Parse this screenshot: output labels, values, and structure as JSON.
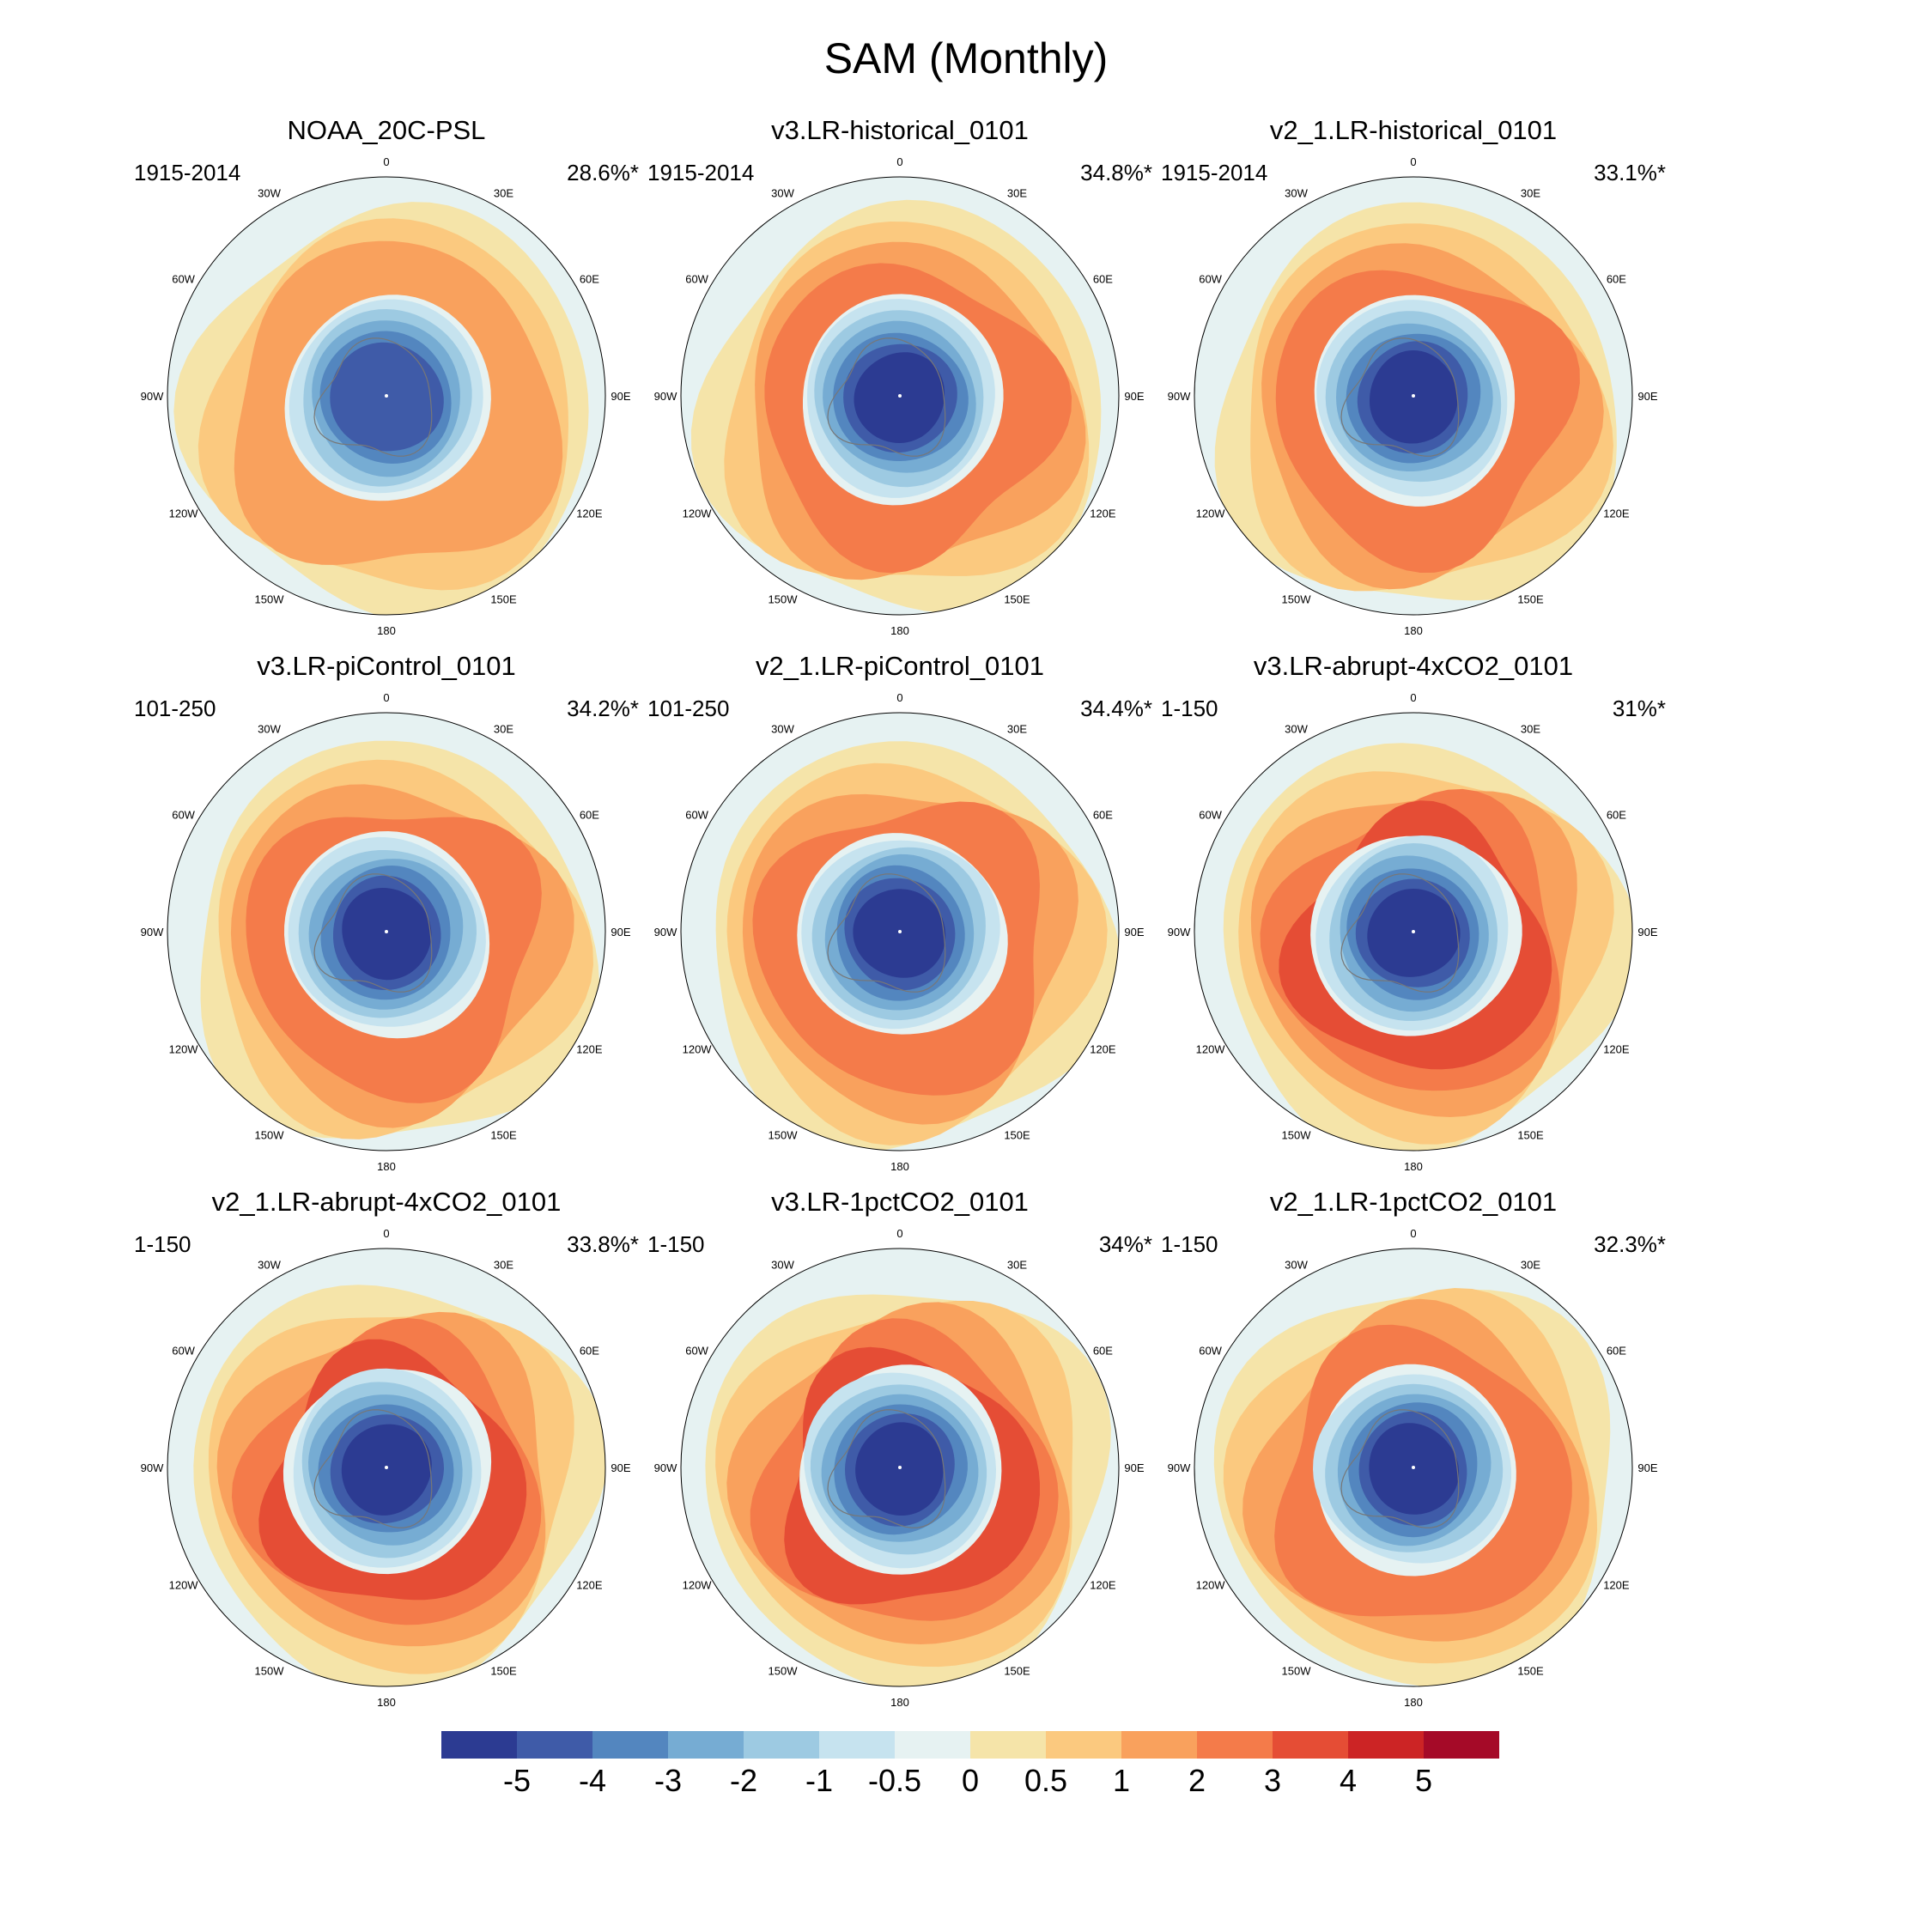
{
  "title": "SAM (Monthly)",
  "panels": [
    {
      "title": "NOAA_20C-PSL",
      "period": "1915-2014",
      "percent": "28.6%*",
      "min_level": -4,
      "max_level": 2
    },
    {
      "title": "v3.LR-historical_0101",
      "period": "1915-2014",
      "percent": "34.8%*",
      "min_level": -5,
      "max_level": 3
    },
    {
      "title": "v2_1.LR-historical_0101",
      "period": "1915-2014",
      "percent": "33.1%*",
      "min_level": -5,
      "max_level": 3
    },
    {
      "title": "v3.LR-piControl_0101",
      "period": "101-250",
      "percent": "34.2%*",
      "min_level": -5,
      "max_level": 3
    },
    {
      "title": "v2_1.LR-piControl_0101",
      "period": "101-250",
      "percent": "34.4%*",
      "min_level": -5,
      "max_level": 3
    },
    {
      "title": "v3.LR-abrupt-4xCO2_0101",
      "period": "1-150",
      "percent": "31%*",
      "min_level": -5,
      "max_level": 4
    },
    {
      "title": "v2_1.LR-abrupt-4xCO2_0101",
      "period": "1-150",
      "percent": "33.8%*",
      "min_level": -5,
      "max_level": 4
    },
    {
      "title": "v3.LR-1pctCO2_0101",
      "period": "1-150",
      "percent": "34%*",
      "min_level": -5,
      "max_level": 4
    },
    {
      "title": "v2_1.LR-1pctCO2_0101",
      "period": "1-150",
      "percent": "32.3%*",
      "min_level": -5,
      "max_level": 3
    }
  ],
  "longitude_labels": [
    "0",
    "30E",
    "60E",
    "90E",
    "120E",
    "150E",
    "180",
    "150W",
    "120W",
    "90W",
    "60W",
    "30W"
  ],
  "colorbar": {
    "colors": [
      "#2c3b92",
      "#3f5ba8",
      "#5386bf",
      "#76acd3",
      "#9dcae2",
      "#c6e3ef",
      "#e6f2f2",
      "#f5e4a9",
      "#fbc97f",
      "#f9a15d",
      "#f47b4a",
      "#e54d35",
      "#cc2425",
      "#a50a28"
    ],
    "tick_labels": [
      "-5",
      "-4",
      "-3",
      "-2",
      "-1",
      "-0.5",
      "0",
      "0.5",
      "1",
      "2",
      "3",
      "4",
      "5"
    ]
  }
}
